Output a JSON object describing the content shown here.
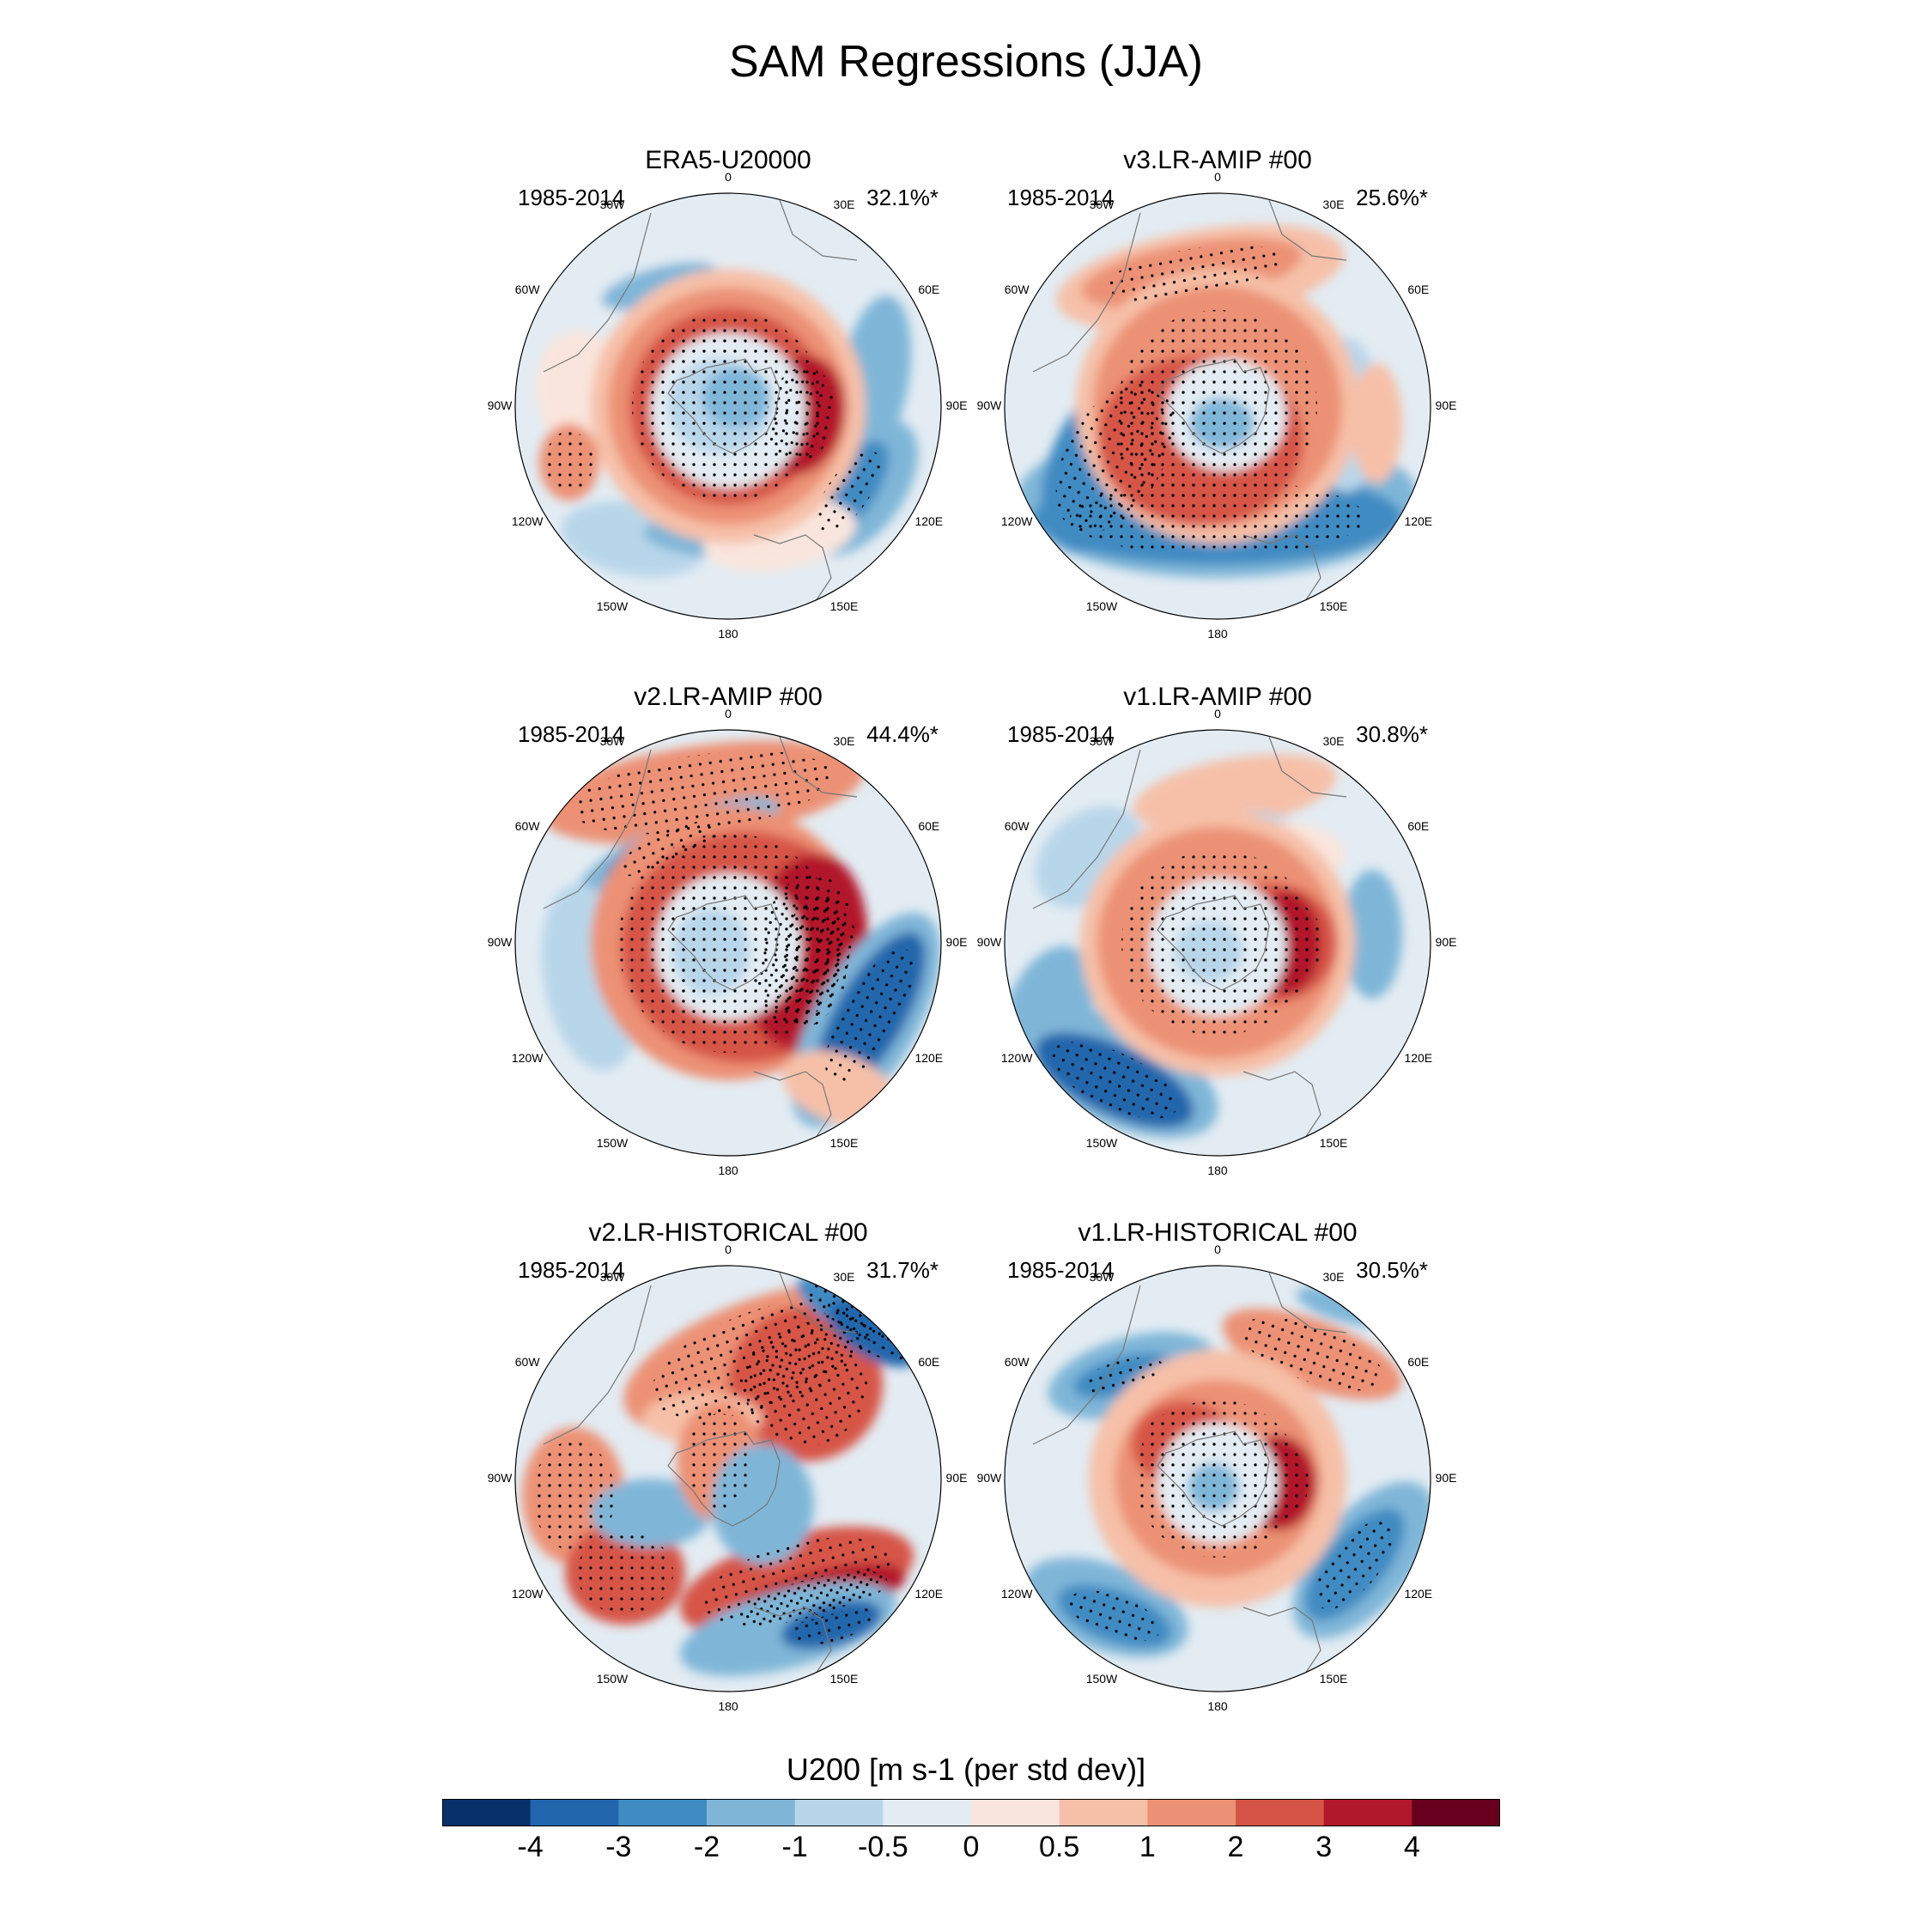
{
  "title": "SAM Regressions (JJA)",
  "colorbar": {
    "title": "U200 [m s-1 (per std dev)]",
    "ticks": [
      "-4",
      "-3",
      "-2",
      "-1",
      "-0.5",
      "0",
      "0.5",
      "1",
      "2",
      "3",
      "4"
    ],
    "colors": [
      "#08306b",
      "#2166ac",
      "#3f8bc2",
      "#7fb6d8",
      "#b8d6ea",
      "#e3ecf3",
      "#f9e5dd",
      "#f6c0a8",
      "#ec9175",
      "#d65447",
      "#b2182b",
      "#67001f"
    ]
  },
  "longitude_labels": [
    "0",
    "30E",
    "60E",
    "90E",
    "120E",
    "150E",
    "180",
    "150W",
    "120W",
    "90W",
    "60W",
    "30W"
  ],
  "panels": [
    {
      "title": "ERA5-U20000",
      "period": "1985-2014",
      "variance": "32.1%*"
    },
    {
      "title": "v3.LR-AMIP  #00",
      "period": "1985-2014",
      "variance": "25.6%*"
    },
    {
      "title": "v2.LR-AMIP  #00",
      "period": "1985-2014",
      "variance": "44.4%*"
    },
    {
      "title": "v1.LR-AMIP  #00",
      "period": "1985-2014",
      "variance": "30.8%*"
    },
    {
      "title": "v2.LR-HISTORICAL  #00",
      "period": "1985-2014",
      "variance": "31.7%*"
    },
    {
      "title": "v1.LR-HISTORICAL  #00",
      "period": "1985-2014",
      "variance": "30.5%*"
    }
  ]
}
